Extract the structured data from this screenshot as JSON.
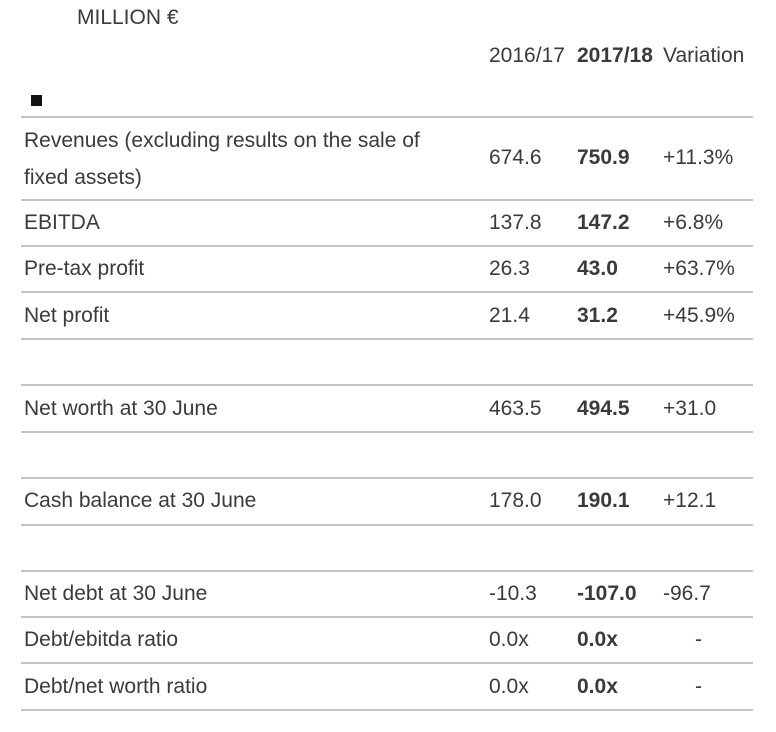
{
  "unit_label": "MILLION €",
  "columns": {
    "c1": "2016/17",
    "c2": "2017/18",
    "c3": "Variation"
  },
  "rows": [
    {
      "label": "Revenues (excluding results on the sale of fixed assets)",
      "c1": "674.6",
      "c2": "750.9",
      "c3": "+11.3%"
    },
    {
      "label": "EBITDA",
      "c1": "137.8",
      "c2": "147.2",
      "c3": "+6.8%"
    },
    {
      "label": "Pre-tax profit",
      "c1": "26.3",
      "c2": "43.0",
      "c3": "+63.7%"
    },
    {
      "label": "Net profit",
      "c1": "21.4",
      "c2": "31.2",
      "c3": "+45.9%"
    },
    {
      "label": "Net worth at 30 June",
      "c1": "463.5",
      "c2": "494.5",
      "c3": "+31.0"
    },
    {
      "label": "Cash balance at 30 June",
      "c1": "178.0",
      "c2": "190.1",
      "c3": "+12.1"
    },
    {
      "label": "Net debt at 30 June",
      "c1": "-10.3",
      "c2": "-107.0",
      "c3": "-96.7"
    },
    {
      "label": "Debt/ebitda ratio",
      "c1": "0.0x",
      "c2": "0.0x",
      "c3": "-"
    },
    {
      "label": "Debt/net worth ratio",
      "c1": "0.0x",
      "c2": "0.0x",
      "c3": "-"
    }
  ]
}
